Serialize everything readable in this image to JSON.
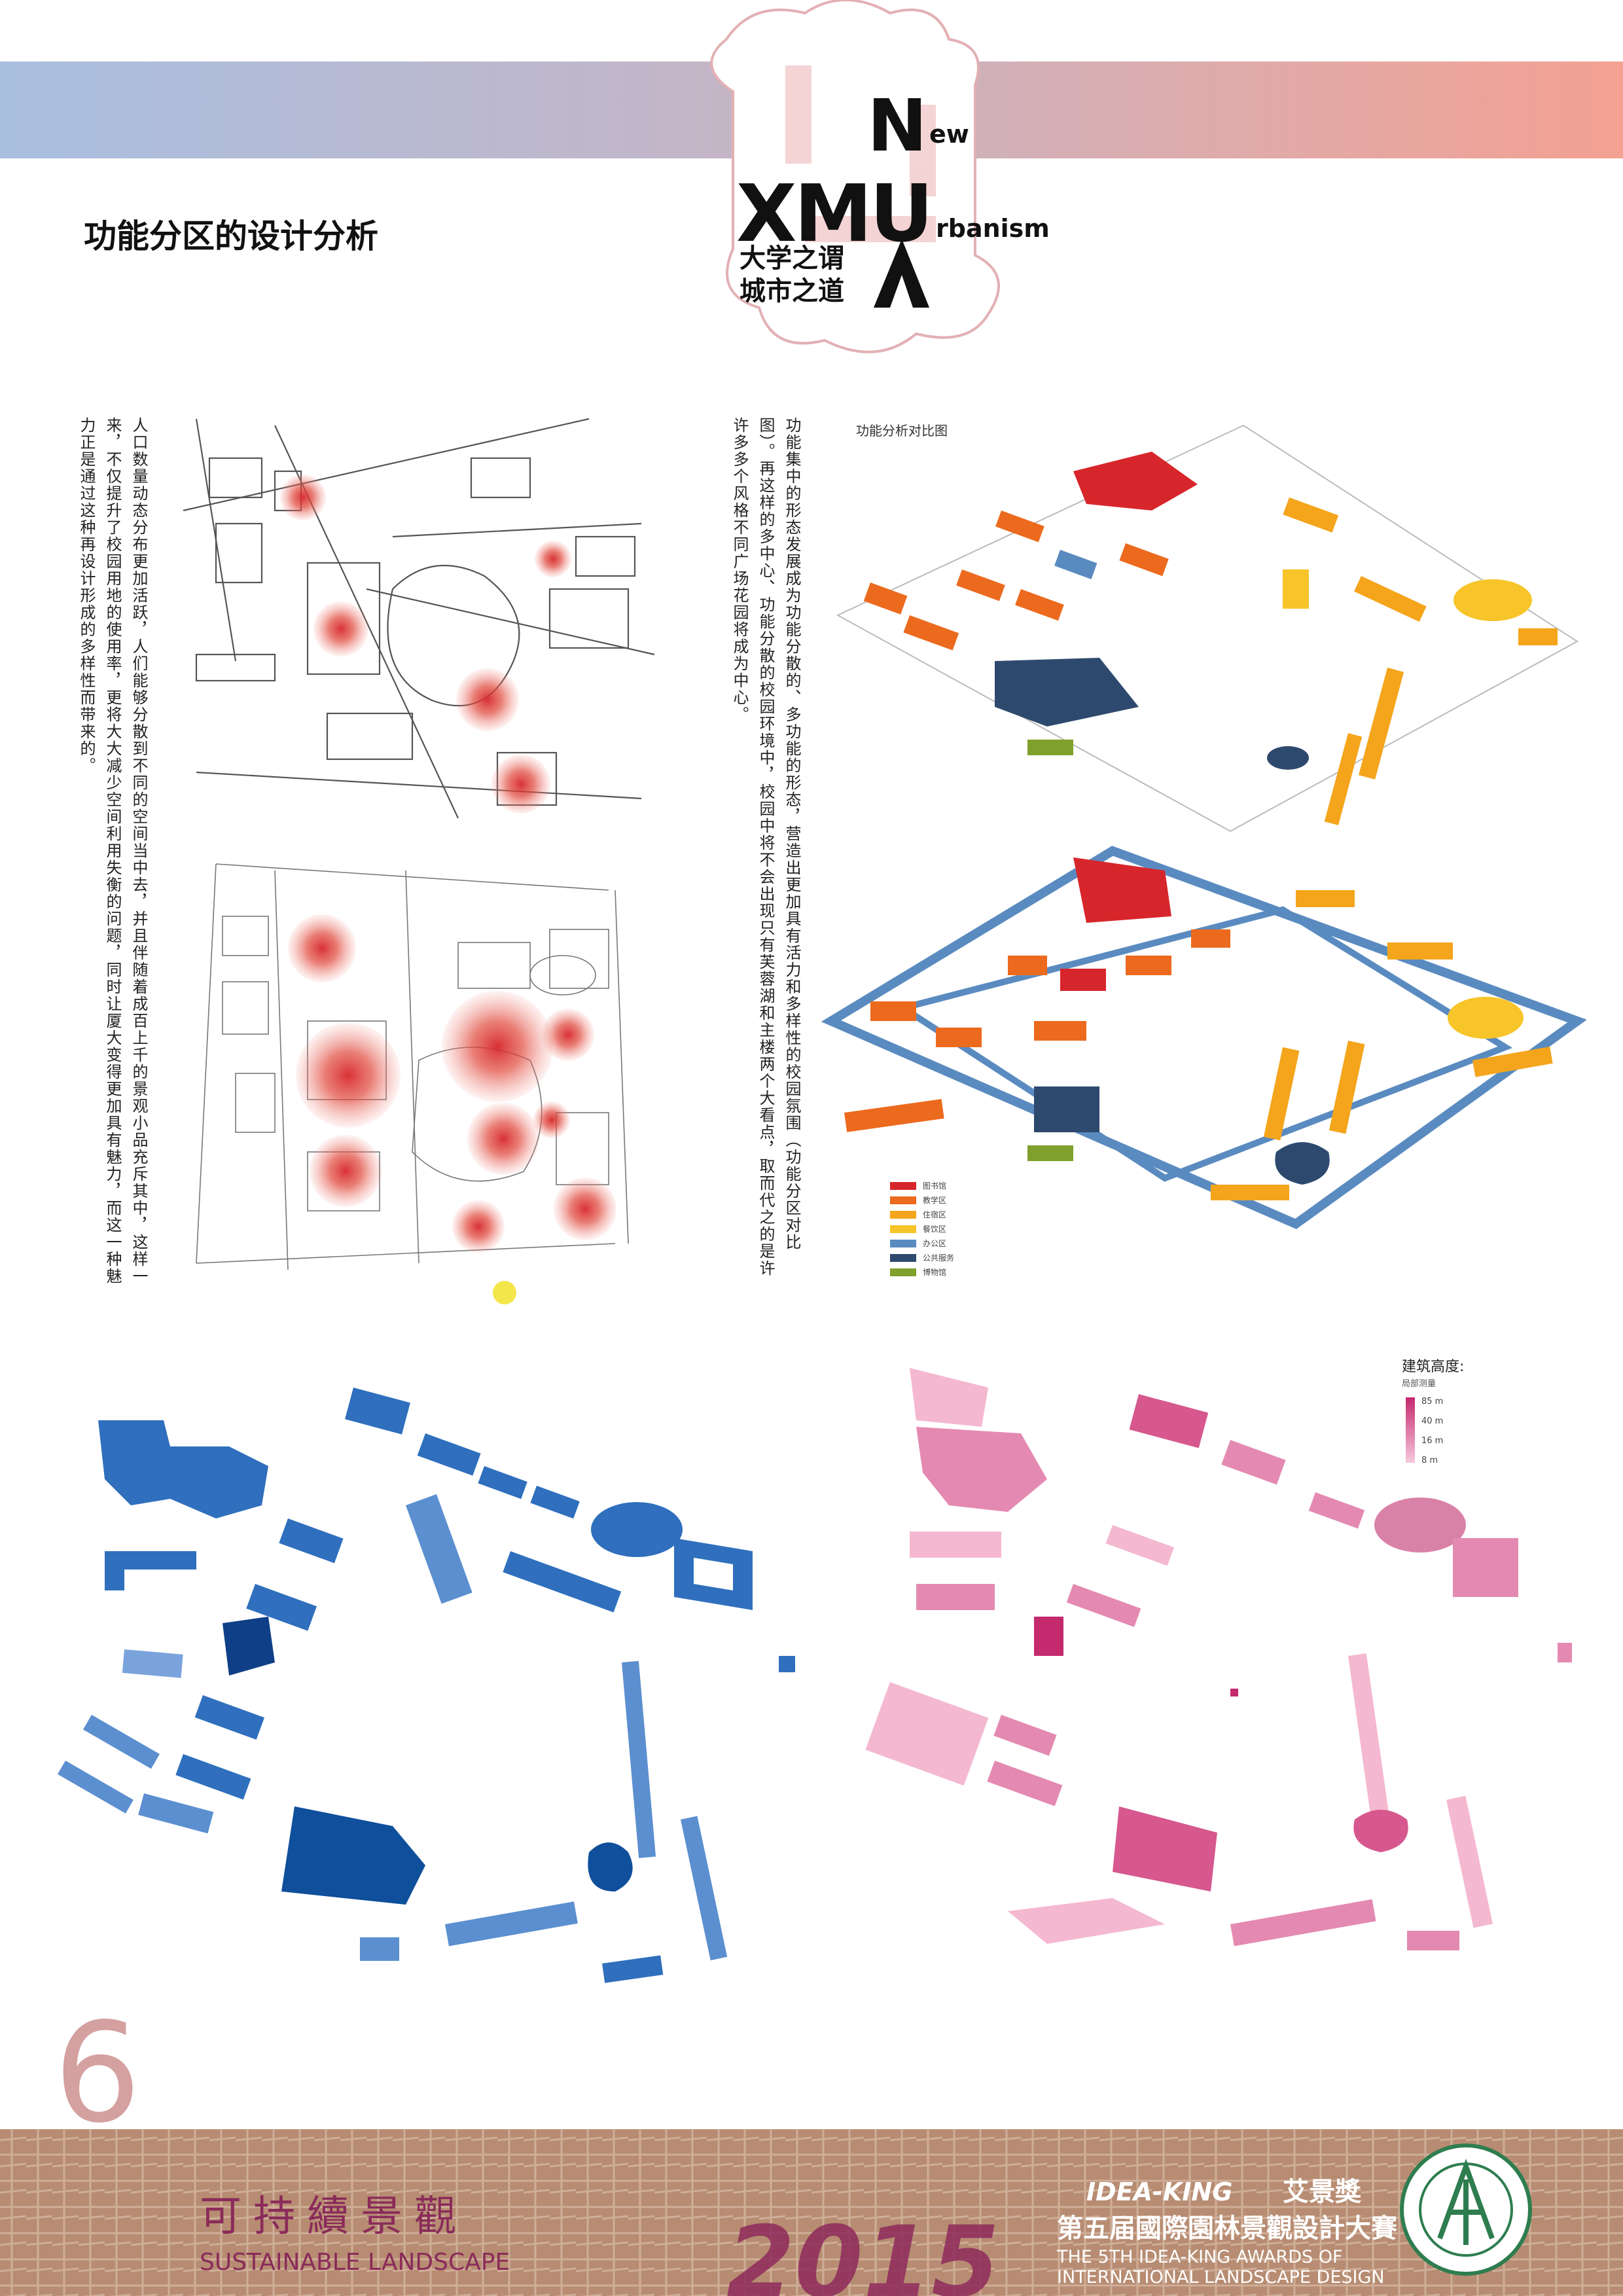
{
  "header": {
    "title": "功能分区的设计分析",
    "logo": {
      "n": "N",
      "ew": "ew",
      "xmu": "XMU",
      "rbanism": "rbanism",
      "line1": "大学之谓",
      "line2": "城市之道"
    }
  },
  "left_text": "人口数量动态分布更加活跃，人们能够分散到不同的空间当中去，并且伴随着成百上千的景观小品充斥其中，这样一来，不仅提升了校园用地的使用率，更将大大减少空间利用失衡的问题，同时让厦大变得更加具有魅力，而这一种魅力正是通过这种再设计形成的多样性而带来的。",
  "right_text": "功能集中的形态发展成为功能分散的、多功能的形态，营造出更加具有活力和多样性的校园氛围（功能分区对比图）。再这样的多中心、功能分散的校园环境中，校园中将不会出现只有芙蓉湖和主楼两个大看点，取而代之的是许许多多个风格不同广场花园将成为中心。",
  "figure": {
    "title": "功能分析对比图",
    "legend": [
      {
        "label": "图书馆",
        "color": "#d7262b"
      },
      {
        "label": "教学区",
        "color": "#ec6a1e"
      },
      {
        "label": "住宿区",
        "color": "#f4a51c"
      },
      {
        "label": "餐饮区",
        "color": "#f7c52a"
      },
      {
        "label": "办公区",
        "color": "#5a8bc0"
      },
      {
        "label": "公共服务",
        "color": "#2d4a6e"
      },
      {
        "label": "博物馆",
        "color": "#7fa02b"
      }
    ]
  },
  "height_legend": {
    "title": "建筑高度:",
    "subtitle": "局部测量",
    "levels": [
      "85 m",
      "40 m",
      "16 m",
      "8 m"
    ]
  },
  "page_number": "6",
  "footer": {
    "name_cn": "可持續景觀",
    "name_en": "SUSTAINABLE LANDSCAPE",
    "year": "2015",
    "brand": "IDEA-KING",
    "award_cn": "艾景獎",
    "contest_cn": "第五届國際園林景觀設計大賽",
    "contest_en_1": "THE 5TH IDEA-KING AWARDS OF",
    "contest_en_2": "INTERNATIONAL LANDSCAPE DESIGN"
  }
}
